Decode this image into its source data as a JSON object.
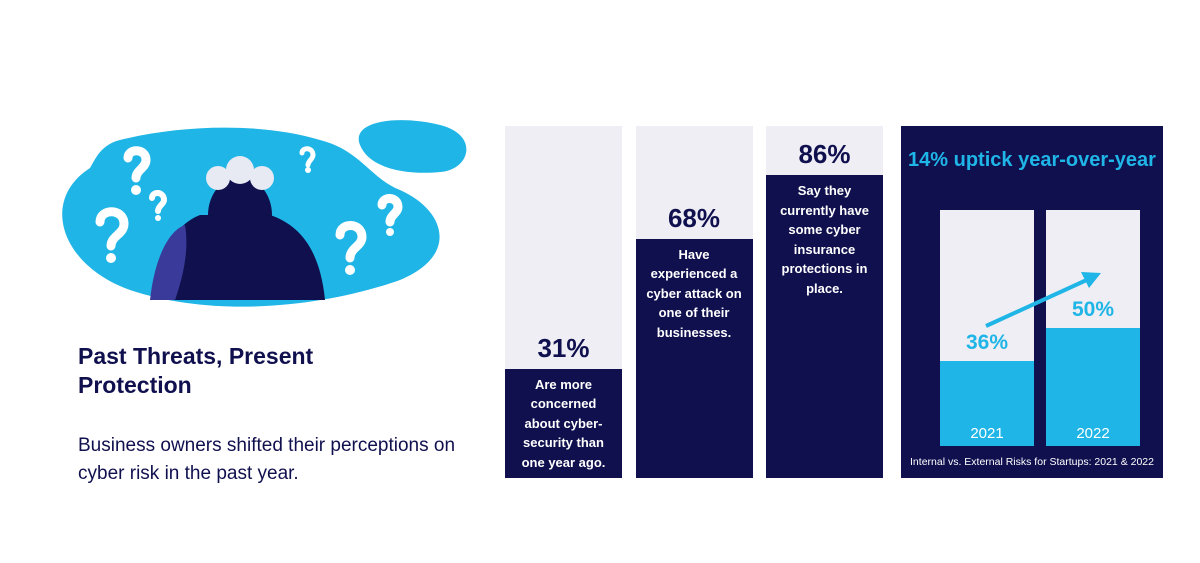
{
  "heading": "Past Threats, Present Protection",
  "description": "Business owners shifted their perceptions on cyber risk in the past year.",
  "chart_data": [
    {
      "type": "bar",
      "categories": [
        "Are more concerned about cyber-security than one year ago.",
        "Have experienced a cyber attack on one of their businesses.",
        "Say they currently have some cyber insurance protections in place."
      ],
      "values": [
        31,
        68,
        86
      ],
      "value_labels": [
        "31%",
        "68%",
        "86%"
      ],
      "color": "#10104f",
      "ylim": [
        0,
        100
      ]
    },
    {
      "type": "bar",
      "title": "14% uptick year-over-year",
      "categories": [
        "2021",
        "2022"
      ],
      "values": [
        36,
        50
      ],
      "value_labels": [
        "36%",
        "50%"
      ],
      "color": "#1fb5e6",
      "ylim": [
        0,
        100
      ],
      "caption": "Internal vs. External Risks for Startups: 2021 & 2022"
    }
  ]
}
